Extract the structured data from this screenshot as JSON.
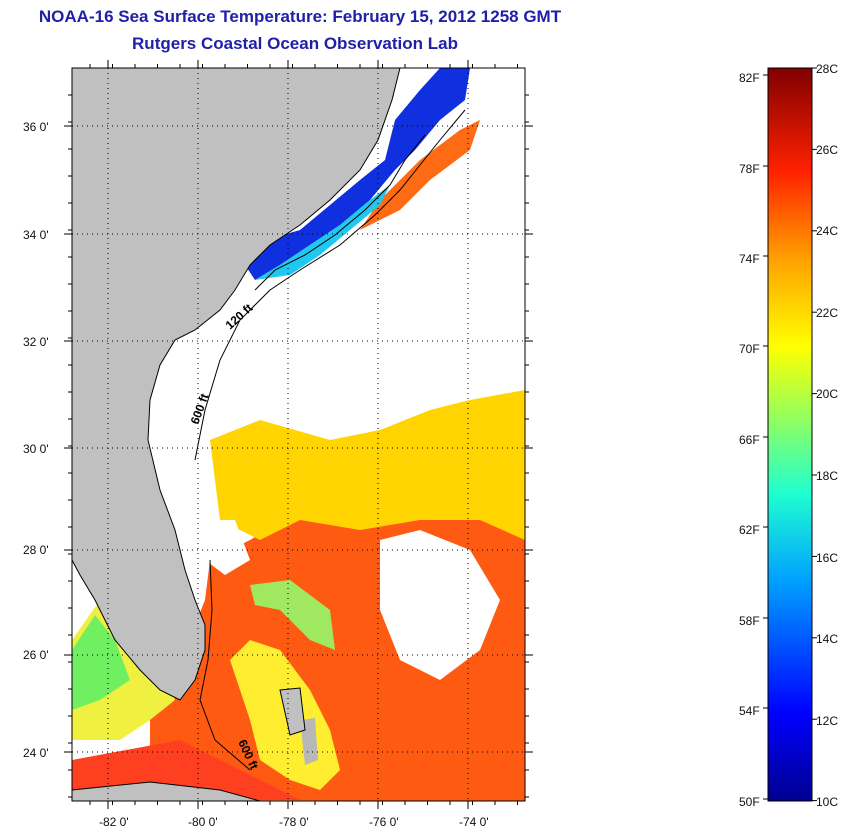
{
  "header": {
    "title": "NOAA-16 Sea Surface Temperature:  February 15, 2012 1258 GMT",
    "subtitle": "Rutgers Coastal Ocean Observation Lab"
  },
  "map": {
    "lon_range": [
      -83,
      -73
    ],
    "lat_range": [
      23,
      37
    ],
    "lat_labels": [
      "36 0'",
      "34 0'",
      "32 0'",
      "30 0'",
      "28 0'",
      "26 0'",
      "24 0'"
    ],
    "lon_labels": [
      "-82 0'",
      "-80 0'",
      "-78 0'",
      "-76 0'",
      "-74 0'"
    ],
    "contour_labels": [
      "120 ft",
      "600 ft",
      "600 ft"
    ],
    "colors": {
      "land": "#c0c0c0",
      "cloud": "#ffffff",
      "warm": "#ff5a10",
      "mid": "#ffe000",
      "cool": "#1020d8"
    }
  },
  "colorbar": {
    "fahrenheit_labels": [
      "82F",
      "78F",
      "74F",
      "70F",
      "66F",
      "62F",
      "58F",
      "54F",
      "50F"
    ],
    "celsius_labels": [
      "28C",
      "26C",
      "24C",
      "22C",
      "20C",
      "18C",
      "16C",
      "14C",
      "12C",
      "10C"
    ]
  }
}
